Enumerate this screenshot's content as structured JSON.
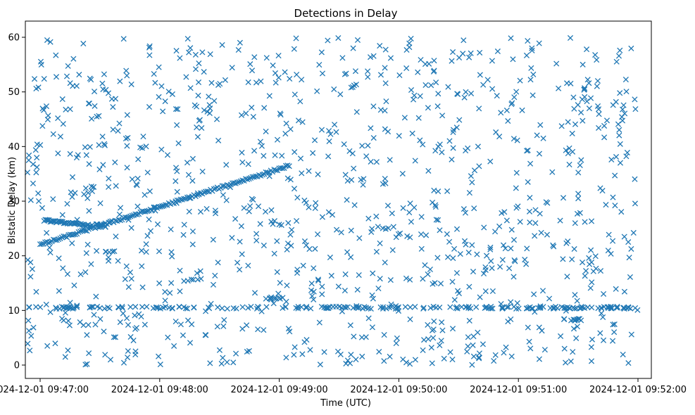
{
  "chart_data": {
    "type": "scatter",
    "title": "Detections in Delay",
    "xlabel": "Time (UTC)",
    "ylabel": "Bistatic Delay (km)",
    "marker": "x",
    "marker_color": "#1f77b4",
    "grid": false,
    "xlim_seconds_from_09_46_50": [
      0,
      310
    ],
    "ylim": [
      -2.5,
      63
    ],
    "x_ticks": [
      {
        "label": "2024-12-01 09:47:00",
        "seconds": 10
      },
      {
        "label": "2024-12-01 09:48:00",
        "seconds": 70
      },
      {
        "label": "2024-12-01 09:49:00",
        "seconds": 130
      },
      {
        "label": "2024-12-01 09:50:00",
        "seconds": 190
      },
      {
        "label": "2024-12-01 09:51:00",
        "seconds": 250
      },
      {
        "label": "2024-12-01 09:52:00",
        "seconds": 310
      }
    ],
    "y_ticks": [
      {
        "label": "0",
        "value": 0
      },
      {
        "label": "10",
        "value": 10
      },
      {
        "label": "20",
        "value": 20
      },
      {
        "label": "30",
        "value": 30
      },
      {
        "label": "40",
        "value": 40
      },
      {
        "label": "50",
        "value": 50
      },
      {
        "label": "60",
        "value": 60
      }
    ],
    "series": [
      {
        "name": "track-rising",
        "description": "ascending linear track",
        "x_range_seconds": [
          10,
          135
        ],
        "y_range": [
          22,
          36.5
        ]
      },
      {
        "name": "track-descending",
        "description": "short descending track",
        "x_range_seconds": [
          12,
          36
        ],
        "y_range": [
          26.5,
          25.5
        ]
      },
      {
        "name": "clutter-band",
        "description": "persistent horizontal band",
        "x_range_seconds": [
          0,
          310
        ],
        "y": 10.5
      },
      {
        "name": "background-noise",
        "description": "random false alarms",
        "x_range_seconds": [
          0,
          310
        ],
        "y_range": [
          0,
          60
        ]
      }
    ]
  }
}
